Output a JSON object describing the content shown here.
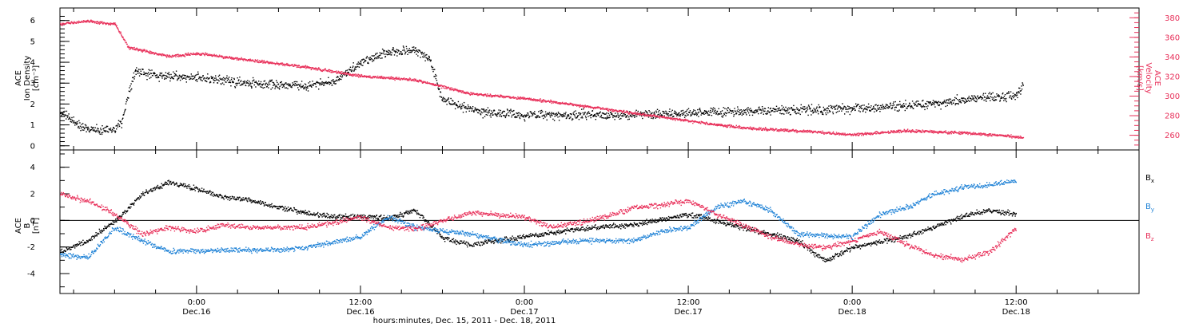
{
  "colors": {
    "black": "#000000",
    "pink": "#e8305a",
    "blue": "#1f82d6"
  },
  "x_axis": {
    "caption": "hours:minutes, Dec. 15, 2011 - Dec. 18, 2011",
    "ticks": [
      {
        "time": "0:00",
        "date": "Dec.16"
      },
      {
        "time": "12:00",
        "date": "Dec.16"
      },
      {
        "time": "0:00",
        "date": "Dec.17"
      },
      {
        "time": "12:00",
        "date": "Dec.17"
      },
      {
        "time": "0:00",
        "date": "Dec.18"
      },
      {
        "time": "12:00",
        "date": "Dec.18"
      }
    ]
  },
  "chart_data": [
    {
      "type": "scatter",
      "grid": false,
      "x_range": [
        "Dec. 15, 2011 14:00",
        "Dec. 18, 2011 21:00"
      ],
      "ylabel_left": [
        "ACE",
        "Ion Density",
        "[cm⁻³]"
      ],
      "ylabel_right": [
        "ACE",
        "Velocity",
        "[km/s]"
      ],
      "y_left_ticks": [
        "0",
        "1",
        "2",
        "3",
        "4",
        "5",
        "6"
      ],
      "y_right_ticks": [
        "260",
        "280",
        "300",
        "320",
        "340",
        "360",
        "380"
      ],
      "ylim_left": [
        -0.2,
        6.6
      ],
      "ylim_right": [
        245,
        390
      ],
      "series": [
        {
          "axis": "left",
          "color": "black",
          "x": [
            "Dec. 15, 2011 14:00",
            "Dec. 15, 2011 16:00",
            "Dec. 15, 2011 18:00",
            "Dec. 15, 2011 18:30",
            "Dec. 15, 2011 19:30",
            "Dec. 15, 2011 21:00",
            "Dec. 16, 2011 00:00",
            "Dec. 16, 2011 04:00",
            "Dec. 16, 2011 08:00",
            "Dec. 16, 2011 10:00",
            "Dec. 16, 2011 12:00",
            "Dec. 16, 2011 14:00",
            "Dec. 16, 2011 16:00",
            "Dec. 16, 2011 17:00",
            "Dec. 16, 2011 18:00",
            "Dec. 16, 2011 21:00",
            "Dec. 17, 2011 00:00",
            "Dec. 17, 2011 06:00",
            "Dec. 17, 2011 12:00",
            "Dec. 17, 2011 18:00",
            "Dec. 18, 2011 00:00",
            "Dec. 18, 2011 06:00",
            "Dec. 18, 2011 09:00",
            "Dec. 18, 2011 12:00",
            "Dec. 18, 2011 12:30"
          ],
          "values": [
            1.6,
            0.8,
            0.8,
            1.2,
            3.6,
            3.4,
            3.3,
            3.0,
            2.9,
            3.1,
            4.0,
            4.5,
            4.6,
            4.2,
            2.2,
            1.6,
            1.5,
            1.5,
            1.6,
            1.7,
            1.8,
            2.0,
            2.3,
            2.4,
            3.0
          ]
        },
        {
          "axis": "right",
          "color": "pink",
          "x": [
            "Dec. 15, 2011 14:00",
            "Dec. 15, 2011 16:00",
            "Dec. 15, 2011 18:00",
            "Dec. 15, 2011 19:00",
            "Dec. 15, 2011 22:00",
            "Dec. 16, 2011 00:00",
            "Dec. 16, 2011 04:00",
            "Dec. 16, 2011 08:00",
            "Dec. 16, 2011 12:00",
            "Dec. 16, 2011 16:00",
            "Dec. 16, 2011 20:00",
            "Dec. 17, 2011 00:00",
            "Dec. 17, 2011 04:00",
            "Dec. 17, 2011 08:00",
            "Dec. 17, 2011 12:00",
            "Dec. 17, 2011 16:00",
            "Dec. 17, 2011 20:00",
            "Dec. 18, 2011 00:00",
            "Dec. 18, 2011 04:00",
            "Dec. 18, 2011 08:00",
            "Dec. 18, 2011 12:00",
            "Dec. 18, 2011 12:30"
          ],
          "values": [
            374,
            377,
            374,
            350,
            341,
            344,
            337,
            330,
            321,
            317,
            303,
            298,
            291,
            283,
            275,
            268,
            265,
            261,
            265,
            263,
            259,
            258
          ]
        }
      ]
    },
    {
      "type": "scatter",
      "grid": false,
      "x_range": [
        "Dec. 15, 2011 14:00",
        "Dec. 18, 2011 21:00"
      ],
      "ylabel": [
        "ACE",
        "B",
        "[nT]"
      ],
      "y_ticks": [
        "-4",
        "-2",
        "0",
        "2",
        "4"
      ],
      "ylim": [
        -5.5,
        5.3
      ],
      "zero_line": 0,
      "legend_position": "right",
      "series": [
        {
          "name": "B_x",
          "name_main": "B",
          "name_sub": "x",
          "color": "black",
          "x": [
            "Dec. 15, 2011 14:00",
            "Dec. 15, 2011 16:00",
            "Dec. 15, 2011 18:00",
            "Dec. 15, 2011 20:00",
            "Dec. 15, 2011 22:00",
            "Dec. 16, 2011 00:00",
            "Dec. 16, 2011 02:00",
            "Dec. 16, 2011 04:00",
            "Dec. 16, 2011 06:00",
            "Dec. 16, 2011 08:00",
            "Dec. 16, 2011 10:00",
            "Dec. 16, 2011 12:00",
            "Dec. 16, 2011 14:00",
            "Dec. 16, 2011 16:00",
            "Dec. 16, 2011 18:00",
            "Dec. 16, 2011 20:00",
            "Dec. 16, 2011 22:00",
            "Dec. 17, 2011 00:00",
            "Dec. 17, 2011 04:00",
            "Dec. 17, 2011 08:00",
            "Dec. 17, 2011 12:00",
            "Dec. 17, 2011 16:00",
            "Dec. 17, 2011 20:00",
            "Dec. 17, 2011 22:00",
            "Dec. 18, 2011 00:00",
            "Dec. 18, 2011 04:00",
            "Dec. 18, 2011 08:00",
            "Dec. 18, 2011 10:00",
            "Dec. 18, 2011 12:00"
          ],
          "values": [
            -2.3,
            -1.5,
            0.0,
            2.0,
            2.9,
            2.4,
            1.8,
            1.5,
            1.0,
            0.6,
            0.3,
            0.4,
            0.2,
            0.8,
            -1.3,
            -1.8,
            -1.5,
            -1.2,
            -0.6,
            -0.3,
            0.5,
            -0.5,
            -1.5,
            -3.0,
            -2.0,
            -1.2,
            0.3,
            0.8,
            0.5
          ]
        },
        {
          "name": "B_y",
          "name_main": "B",
          "name_sub": "y",
          "color": "blue",
          "x": [
            "Dec. 15, 2011 14:00",
            "Dec. 15, 2011 16:00",
            "Dec. 15, 2011 18:00",
            "Dec. 15, 2011 20:00",
            "Dec. 15, 2011 22:00",
            "Dec. 16, 2011 02:00",
            "Dec. 16, 2011 06:00",
            "Dec. 16, 2011 08:00",
            "Dec. 16, 2011 12:00",
            "Dec. 16, 2011 14:00",
            "Dec. 16, 2011 16:00",
            "Dec. 16, 2011 20:00",
            "Dec. 17, 2011 00:00",
            "Dec. 17, 2011 04:00",
            "Dec. 17, 2011 08:00",
            "Dec. 17, 2011 10:00",
            "Dec. 17, 2011 12:00",
            "Dec. 17, 2011 14:00",
            "Dec. 17, 2011 16:00",
            "Dec. 17, 2011 18:00",
            "Dec. 17, 2011 20:00",
            "Dec. 18, 2011 00:00",
            "Dec. 18, 2011 02:00",
            "Dec. 18, 2011 04:00",
            "Dec. 18, 2011 06:00",
            "Dec. 18, 2011 08:00",
            "Dec. 18, 2011 10:00",
            "Dec. 18, 2011 12:00"
          ],
          "values": [
            -2.5,
            -2.8,
            -0.5,
            -1.5,
            -2.3,
            -2.2,
            -2.2,
            -2.0,
            -1.2,
            0.3,
            -0.5,
            -1.0,
            -1.8,
            -1.5,
            -1.5,
            -0.8,
            -0.5,
            1.0,
            1.5,
            0.8,
            -1.0,
            -1.2,
            0.5,
            1.0,
            2.0,
            2.5,
            2.7,
            3.0
          ]
        },
        {
          "name": "B_z",
          "name_main": "B",
          "name_sub": "z",
          "color": "pink",
          "x": [
            "Dec. 15, 2011 14:00",
            "Dec. 15, 2011 16:00",
            "Dec. 15, 2011 18:00",
            "Dec. 15, 2011 20:00",
            "Dec. 15, 2011 22:00",
            "Dec. 16, 2011 00:00",
            "Dec. 16, 2011 02:00",
            "Dec. 16, 2011 04:00",
            "Dec. 16, 2011 08:00",
            "Dec. 16, 2011 12:00",
            "Dec. 16, 2011 14:00",
            "Dec. 16, 2011 16:00",
            "Dec. 16, 2011 20:00",
            "Dec. 17, 2011 00:00",
            "Dec. 17, 2011 02:00",
            "Dec. 17, 2011 06:00",
            "Dec. 17, 2011 08:00",
            "Dec. 17, 2011 10:00",
            "Dec. 17, 2011 12:00",
            "Dec. 17, 2011 14:00",
            "Dec. 17, 2011 18:00",
            "Dec. 17, 2011 20:00",
            "Dec. 17, 2011 22:00",
            "Dec. 18, 2011 00:00",
            "Dec. 18, 2011 02:00",
            "Dec. 18, 2011 04:00",
            "Dec. 18, 2011 06:00",
            "Dec. 18, 2011 08:00",
            "Dec. 18, 2011 10:00",
            "Dec. 18, 2011 12:00"
          ],
          "values": [
            2.0,
            1.5,
            0.5,
            -1.0,
            -0.5,
            -0.8,
            -0.3,
            -0.5,
            -0.5,
            0.3,
            -0.5,
            -0.6,
            0.6,
            0.3,
            -0.5,
            0.3,
            1.0,
            1.2,
            1.5,
            0.5,
            -1.2,
            -1.8,
            -2.0,
            -1.5,
            -0.8,
            -1.8,
            -2.6,
            -2.9,
            -2.4,
            -0.5
          ]
        }
      ]
    }
  ]
}
